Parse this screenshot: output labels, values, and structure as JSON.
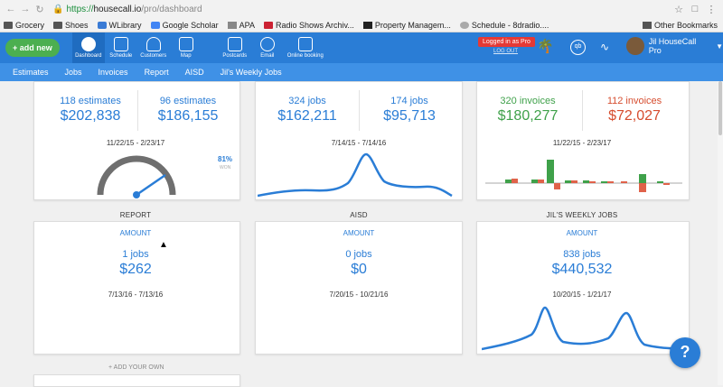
{
  "browser": {
    "url_proto": "https://",
    "url_host": "housecall.io",
    "url_path": "/pro/dashboard",
    "bookmarks": [
      "Grocery",
      "Shoes",
      "WLibrary",
      "Google Scholar",
      "APA",
      "Radio Shows Archiv...",
      "Property Managem...",
      "Schedule - 8dradio...."
    ],
    "other_bookmarks": "Other Bookmarks"
  },
  "appbar": {
    "add_new": "+ add new",
    "nav": [
      "Dashboard",
      "Schedule",
      "Customers",
      "Map"
    ],
    "nav2": [
      "Postcards",
      "Email",
      "Online booking"
    ],
    "logged_in": "Logged in as Pro",
    "logout": "LOG OUT",
    "user": "Jil HouseCall Pro"
  },
  "subnav": [
    "Estimates",
    "Jobs",
    "Invoices",
    "Report",
    "AISD",
    "Jil's Weekly Jobs"
  ],
  "cards": {
    "estimates": {
      "left_count": "118 estimates",
      "left_value": "$202,838",
      "right_count": "96 estimates",
      "right_value": "$186,155",
      "range": "11/22/15 - 2/23/17",
      "percent": "81%",
      "won": "WON"
    },
    "jobs": {
      "left_count": "324 jobs",
      "left_value": "$162,211",
      "right_count": "174 jobs",
      "right_value": "$95,713",
      "range": "7/14/15 - 7/14/16"
    },
    "invoices": {
      "left_count": "320 invoices",
      "left_value": "$180,277",
      "right_count": "112 invoices",
      "right_value": "$72,027",
      "range": "11/22/15 - 2/23/17"
    },
    "report": {
      "title": "REPORT",
      "amount": "AMOUNT",
      "count": "1 jobs",
      "value": "$262",
      "range": "7/13/16 - 7/13/16"
    },
    "aisd": {
      "title": "AISD",
      "amount": "AMOUNT",
      "count": "0 jobs",
      "value": "$0",
      "range": "7/20/15 - 10/21/16"
    },
    "weekly": {
      "title": "JIL'S WEEKLY JOBS",
      "amount": "AMOUNT",
      "count": "838 jobs",
      "value": "$440,532",
      "range": "10/20/15 - 1/21/17"
    }
  },
  "add_own": "+ ADD YOUR OWN",
  "help": "?",
  "colors": {
    "primary": "#2a7dd6",
    "green": "#3fa14a",
    "red": "#d64d2f"
  }
}
